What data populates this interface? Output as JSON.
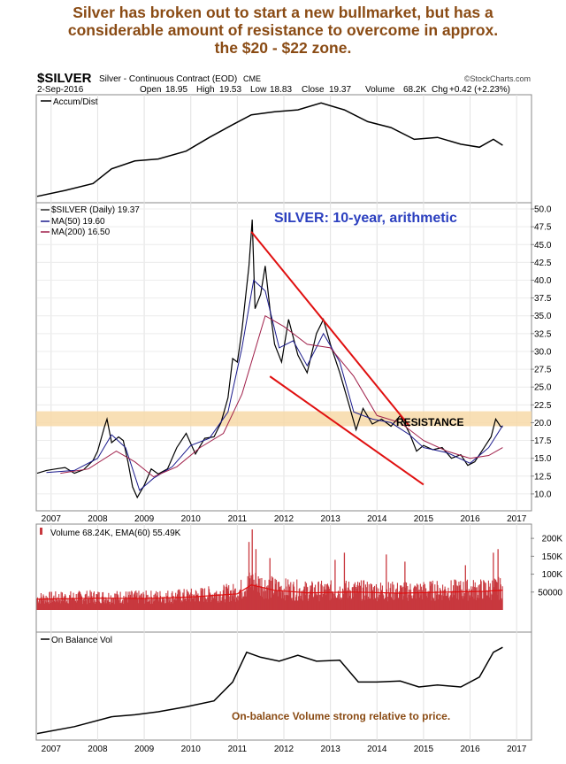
{
  "headline": {
    "line1": "Silver has broken out to start a new bullmarket, but has a",
    "line2": "considerable amount of resistance to overcome in approx.",
    "line3": "the $20 - $22 zone."
  },
  "header": {
    "symbol": "$SILVER",
    "name": "Silver - Continuous Contract (EOD)",
    "exchange": "CME",
    "watermark": "©StockCharts.com",
    "date": "2-Sep-2016",
    "open_label": "Open",
    "open": "18.95",
    "high_label": "High",
    "high": "19.53",
    "low_label": "Low",
    "low": "18.83",
    "close_label": "Close",
    "close": "19.37",
    "volume_label": "Volume",
    "volume": "68.2K",
    "chg_label": "Chg",
    "chg": "+0.42 (+2.23%)"
  },
  "panels": {
    "accum": {
      "label": "Accum/Dist"
    },
    "price": {
      "legend1": "$SILVER (Daily) 19.37",
      "legend2": "MA(50) 19.60",
      "legend3": "MA(200) 16.50",
      "title": "SILVER: 10-year, arithmetic",
      "resistance_label": "RESISTANCE"
    },
    "volume": {
      "label": "Volume 68.24K, EMA(60) 55.49K"
    },
    "obv": {
      "label": "On Balance Vol",
      "note": "On-balance Volume strong relative to price."
    }
  },
  "colors": {
    "headline": "#8a4b14",
    "price_line": "#000000",
    "ma50": "#1a1a8c",
    "ma200": "#a0204a",
    "trendline": "#e01010",
    "resistance_band": "#f7d9a8",
    "volume_bar": "#c8383e",
    "title_blue": "#2b3fbf",
    "note": "#8a4b14"
  },
  "chart_data": [
    {
      "type": "line",
      "name": "price",
      "title": "SILVER: 10-year, arithmetic",
      "x_ticks": [
        "2007",
        "2008",
        "2009",
        "2010",
        "2011",
        "2012",
        "2013",
        "2014",
        "2015",
        "2016",
        "2017"
      ],
      "y_ticks": [
        "10.0",
        "12.5",
        "15.0",
        "17.5",
        "20.0",
        "22.5",
        "25.0",
        "27.5",
        "30.0",
        "32.5",
        "35.0",
        "37.5",
        "40.0",
        "42.5",
        "45.0",
        "47.5",
        "50.0"
      ],
      "ylim": [
        8,
        50.5
      ],
      "xlim": [
        2006.7,
        2017.3
      ],
      "series": [
        {
          "name": "$SILVER (Daily)",
          "points": [
            [
              2006.7,
              12.9
            ],
            [
              2006.9,
              13.3
            ],
            [
              2007.1,
              13.5
            ],
            [
              2007.3,
              13.7
            ],
            [
              2007.5,
              12.9
            ],
            [
              2007.7,
              13.4
            ],
            [
              2007.9,
              14.7
            ],
            [
              2008.0,
              16.0
            ],
            [
              2008.15,
              19.5
            ],
            [
              2008.2,
              20.5
            ],
            [
              2008.3,
              17.2
            ],
            [
              2008.45,
              18.0
            ],
            [
              2008.55,
              17.5
            ],
            [
              2008.65,
              14.5
            ],
            [
              2008.75,
              11.0
            ],
            [
              2008.85,
              9.5
            ],
            [
              2009.0,
              11.2
            ],
            [
              2009.15,
              13.5
            ],
            [
              2009.3,
              12.8
            ],
            [
              2009.5,
              13.5
            ],
            [
              2009.7,
              16.5
            ],
            [
              2009.9,
              18.5
            ],
            [
              2010.1,
              15.6
            ],
            [
              2010.3,
              17.8
            ],
            [
              2010.5,
              18.0
            ],
            [
              2010.65,
              20.0
            ],
            [
              2010.8,
              23.5
            ],
            [
              2010.9,
              29.0
            ],
            [
              2011.0,
              28.5
            ],
            [
              2011.1,
              33.0
            ],
            [
              2011.25,
              42.0
            ],
            [
              2011.32,
              48.5
            ],
            [
              2011.38,
              36.0
            ],
            [
              2011.5,
              38.0
            ],
            [
              2011.6,
              42.0
            ],
            [
              2011.7,
              36.0
            ],
            [
              2011.8,
              31.0
            ],
            [
              2011.95,
              28.5
            ],
            [
              2012.1,
              34.5
            ],
            [
              2012.3,
              29.5
            ],
            [
              2012.5,
              27.0
            ],
            [
              2012.7,
              32.5
            ],
            [
              2012.85,
              34.5
            ],
            [
              2013.0,
              31.0
            ],
            [
              2013.2,
              27.0
            ],
            [
              2013.4,
              22.5
            ],
            [
              2013.55,
              19.0
            ],
            [
              2013.7,
              22.0
            ],
            [
              2013.9,
              19.8
            ],
            [
              2014.1,
              20.5
            ],
            [
              2014.3,
              19.5
            ],
            [
              2014.5,
              21.0
            ],
            [
              2014.7,
              18.5
            ],
            [
              2014.85,
              16.0
            ],
            [
              2015.0,
              16.8
            ],
            [
              2015.2,
              16.2
            ],
            [
              2015.4,
              16.5
            ],
            [
              2015.6,
              15.0
            ],
            [
              2015.8,
              15.5
            ],
            [
              2015.95,
              14.0
            ],
            [
              2016.1,
              14.5
            ],
            [
              2016.3,
              16.5
            ],
            [
              2016.45,
              18.0
            ],
            [
              2016.55,
              20.5
            ],
            [
              2016.65,
              19.5
            ],
            [
              2016.7,
              19.4
            ]
          ]
        },
        {
          "name": "MA(50)",
          "points": [
            [
              2006.9,
              13.0
            ],
            [
              2007.5,
              13.3
            ],
            [
              2008.0,
              15.0
            ],
            [
              2008.3,
              18.3
            ],
            [
              2008.6,
              16.5
            ],
            [
              2008.9,
              10.5
            ],
            [
              2009.2,
              12.2
            ],
            [
              2009.6,
              13.8
            ],
            [
              2010.0,
              16.8
            ],
            [
              2010.4,
              17.8
            ],
            [
              2010.8,
              21.5
            ],
            [
              2011.1,
              30.5
            ],
            [
              2011.35,
              40.0
            ],
            [
              2011.6,
              38.5
            ],
            [
              2011.9,
              30.5
            ],
            [
              2012.2,
              31.5
            ],
            [
              2012.5,
              28.0
            ],
            [
              2012.85,
              32.5
            ],
            [
              2013.2,
              28.5
            ],
            [
              2013.5,
              21.5
            ],
            [
              2013.9,
              20.5
            ],
            [
              2014.3,
              20.0
            ],
            [
              2014.7,
              18.3
            ],
            [
              2015.0,
              16.5
            ],
            [
              2015.5,
              15.8
            ],
            [
              2016.0,
              14.3
            ],
            [
              2016.4,
              16.5
            ],
            [
              2016.7,
              19.6
            ]
          ]
        },
        {
          "name": "MA(200)",
          "points": [
            [
              2007.2,
              12.9
            ],
            [
              2007.8,
              13.5
            ],
            [
              2008.4,
              16.0
            ],
            [
              2008.8,
              14.5
            ],
            [
              2009.2,
              12.4
            ],
            [
              2009.7,
              13.8
            ],
            [
              2010.2,
              16.5
            ],
            [
              2010.7,
              18.5
            ],
            [
              2011.1,
              24.0
            ],
            [
              2011.6,
              35.0
            ],
            [
              2012.0,
              33.5
            ],
            [
              2012.5,
              31.0
            ],
            [
              2013.0,
              30.5
            ],
            [
              2013.5,
              26.5
            ],
            [
              2014.0,
              21.0
            ],
            [
              2014.5,
              20.0
            ],
            [
              2015.0,
              17.5
            ],
            [
              2015.5,
              16.0
            ],
            [
              2016.0,
              15.0
            ],
            [
              2016.4,
              15.4
            ],
            [
              2016.7,
              16.5
            ]
          ]
        }
      ],
      "trendlines": [
        [
          [
            2011.3,
            46.8
          ],
          [
            2014.7,
            19.5
          ]
        ],
        [
          [
            2011.7,
            26.5
          ],
          [
            2015.0,
            11.3
          ]
        ]
      ],
      "resistance_zone": [
        19.5,
        21.6
      ]
    },
    {
      "type": "line",
      "name": "accum_dist",
      "series": [
        {
          "name": "Accum/Dist",
          "points": [
            [
              2006.7,
              0.02
            ],
            [
              2007.3,
              0.08
            ],
            [
              2007.9,
              0.15
            ],
            [
              2008.3,
              0.3
            ],
            [
              2008.8,
              0.38
            ],
            [
              2009.3,
              0.4
            ],
            [
              2009.9,
              0.48
            ],
            [
              2010.4,
              0.62
            ],
            [
              2010.9,
              0.75
            ],
            [
              2011.3,
              0.85
            ],
            [
              2011.8,
              0.88
            ],
            [
              2012.3,
              0.9
            ],
            [
              2012.8,
              0.97
            ],
            [
              2013.3,
              0.9
            ],
            [
              2013.8,
              0.78
            ],
            [
              2014.3,
              0.72
            ],
            [
              2014.8,
              0.6
            ],
            [
              2015.3,
              0.62
            ],
            [
              2015.8,
              0.55
            ],
            [
              2016.2,
              0.52
            ],
            [
              2016.5,
              0.6
            ],
            [
              2016.7,
              0.54
            ]
          ]
        }
      ]
    },
    {
      "type": "bar",
      "name": "volume",
      "y_ticks": [
        "50000",
        "100K",
        "150K",
        "200K"
      ],
      "ylim": [
        0,
        230000
      ],
      "series": [
        {
          "name": "EMA(60)",
          "points": [
            [
              2006.7,
              30000
            ],
            [
              2008.0,
              33000
            ],
            [
              2009.0,
              32000
            ],
            [
              2010.0,
              36000
            ],
            [
              2011.0,
              45000
            ],
            [
              2011.3,
              70000
            ],
            [
              2011.8,
              55000
            ],
            [
              2012.5,
              48000
            ],
            [
              2013.5,
              50000
            ],
            [
              2014.5,
              47000
            ],
            [
              2015.5,
              50000
            ],
            [
              2016.3,
              52000
            ],
            [
              2016.7,
              55490
            ]
          ]
        }
      ],
      "spikes": [
        [
          2011.32,
          225000
        ],
        [
          2011.25,
          190000
        ],
        [
          2011.4,
          170000
        ],
        [
          2011.7,
          145000
        ],
        [
          2013.3,
          160000
        ],
        [
          2013.1,
          140000
        ],
        [
          2014.2,
          155000
        ],
        [
          2014.6,
          135000
        ],
        [
          2015.9,
          125000
        ],
        [
          2016.6,
          170000
        ],
        [
          2016.5,
          160000
        ]
      ]
    },
    {
      "type": "line",
      "name": "on_balance_vol",
      "series": [
        {
          "name": "On Balance Vol",
          "points": [
            [
              2006.7,
              0.03
            ],
            [
              2007.5,
              0.1
            ],
            [
              2008.3,
              0.2
            ],
            [
              2008.8,
              0.22
            ],
            [
              2009.3,
              0.25
            ],
            [
              2009.9,
              0.3
            ],
            [
              2010.5,
              0.36
            ],
            [
              2010.9,
              0.55
            ],
            [
              2011.2,
              0.85
            ],
            [
              2011.5,
              0.8
            ],
            [
              2011.9,
              0.76
            ],
            [
              2012.3,
              0.82
            ],
            [
              2012.7,
              0.76
            ],
            [
              2013.2,
              0.77
            ],
            [
              2013.6,
              0.55
            ],
            [
              2014.0,
              0.55
            ],
            [
              2014.5,
              0.56
            ],
            [
              2014.9,
              0.5
            ],
            [
              2015.3,
              0.52
            ],
            [
              2015.8,
              0.5
            ],
            [
              2016.2,
              0.6
            ],
            [
              2016.5,
              0.85
            ],
            [
              2016.7,
              0.9
            ]
          ]
        }
      ]
    }
  ]
}
